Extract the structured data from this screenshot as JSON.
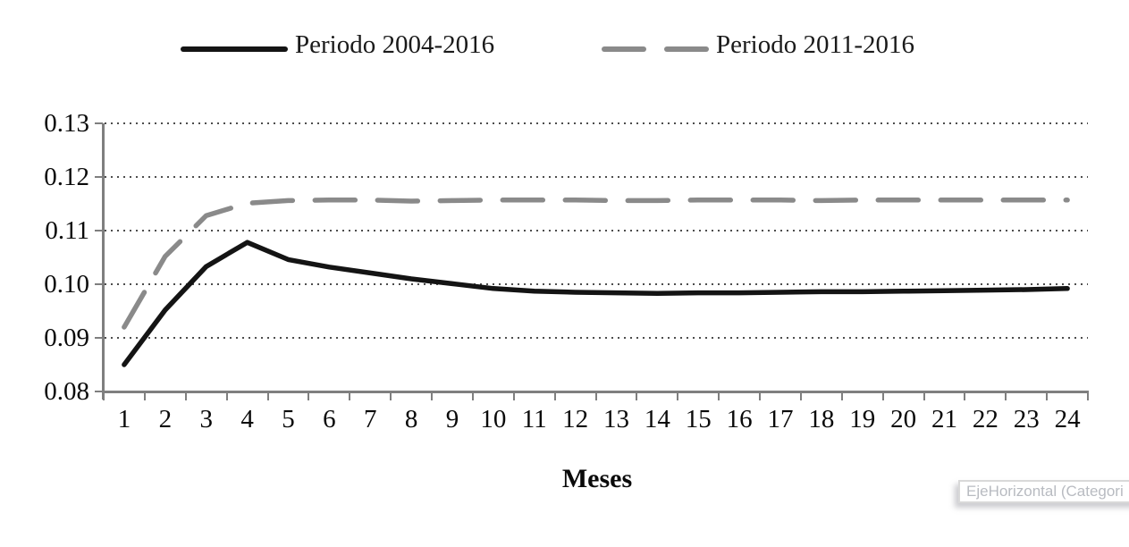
{
  "chart_data": {
    "type": "line",
    "title": "",
    "xlabel": "Meses",
    "ylabel": "",
    "categories": [
      "1",
      "2",
      "3",
      "4",
      "5",
      "6",
      "7",
      "8",
      "9",
      "10",
      "11",
      "12",
      "13",
      "14",
      "15",
      "16",
      "17",
      "18",
      "19",
      "20",
      "21",
      "22",
      "23",
      "24"
    ],
    "ytick_labels": [
      "0.13",
      "0.12",
      "0.11",
      "0.10",
      "0.09",
      "0.08"
    ],
    "ylim": [
      0.08,
      0.13
    ],
    "grid": "horizontal-dotted",
    "legend_position": "top",
    "series": [
      {
        "name": "Periodo 2004-2016",
        "style": "solid",
        "color": "#141414",
        "values": [
          0.085,
          0.0952,
          0.1033,
          0.1078,
          0.1046,
          0.1032,
          0.1021,
          0.101,
          0.1001,
          0.0992,
          0.0987,
          0.0985,
          0.0984,
          0.0983,
          0.0984,
          0.0984,
          0.0985,
          0.0986,
          0.0986,
          0.0987,
          0.0988,
          0.0989,
          0.099,
          0.0992
        ]
      },
      {
        "name": "Periodo 2011-2016",
        "style": "dashed",
        "color": "#8a8a8a",
        "values": [
          0.092,
          0.1052,
          0.1128,
          0.1151,
          0.1156,
          0.1157,
          0.1157,
          0.1155,
          0.1156,
          0.1157,
          0.1157,
          0.1157,
          0.1156,
          0.1156,
          0.1157,
          0.1157,
          0.1157,
          0.1156,
          0.1157,
          0.1157,
          0.1157,
          0.1157,
          0.1157,
          0.1157
        ]
      }
    ]
  },
  "tooltip": {
    "text": "EjeHorizontal (Categori"
  },
  "colors": {
    "axis": "#7f7f7f",
    "gridline": "#4d4d4d",
    "tooltip_text": "#b8bbc1"
  }
}
